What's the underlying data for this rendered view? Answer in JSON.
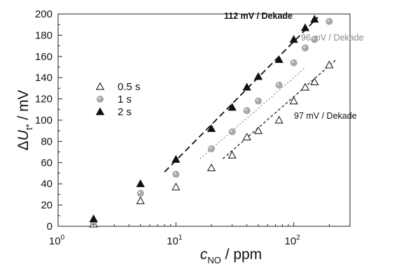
{
  "chart_data": {
    "type": "scatter",
    "x_scale": "log",
    "xlim": [
      1,
      300
    ],
    "ylim": [
      0,
      200
    ],
    "x_ticks": [
      {
        "value": 1,
        "base": "10",
        "exp": "0"
      },
      {
        "value": 10,
        "base": "10",
        "exp": "1"
      },
      {
        "value": 100,
        "base": "10",
        "exp": "2"
      }
    ],
    "y_ticks": [
      0,
      20,
      40,
      60,
      80,
      100,
      120,
      140,
      160,
      180,
      200
    ],
    "xlabel": {
      "symbol": "c",
      "subscript": "NO",
      "rest": " / ppm"
    },
    "ylabel": {
      "delta": "Δ",
      "symbol": "U",
      "subscript": "t*",
      "rest": " / mV"
    },
    "legend": {
      "position": "center-left"
    },
    "series": [
      {
        "name": "0.5 s",
        "marker": "triangle-open",
        "color": "#222222",
        "points": [
          [
            2,
            2
          ],
          [
            5,
            24
          ],
          [
            10,
            37
          ],
          [
            20,
            55
          ],
          [
            30,
            67
          ],
          [
            40,
            84
          ],
          [
            50,
            90
          ],
          [
            75,
            100
          ],
          [
            100,
            118
          ],
          [
            125,
            131
          ],
          [
            150,
            136
          ],
          [
            200,
            152
          ]
        ]
      },
      {
        "name": "1 s",
        "marker": "circle-shaded",
        "color": "#a9a9a9",
        "points": [
          [
            2,
            4
          ],
          [
            5,
            31
          ],
          [
            10,
            49
          ],
          [
            20,
            73
          ],
          [
            30,
            89
          ],
          [
            40,
            109
          ],
          [
            50,
            118
          ],
          [
            75,
            133
          ],
          [
            100,
            154
          ],
          [
            125,
            168
          ],
          [
            150,
            176
          ],
          [
            200,
            193
          ]
        ]
      },
      {
        "name": "2 s",
        "marker": "triangle-filled",
        "color": "#111111",
        "points": [
          [
            2,
            7
          ],
          [
            5,
            40
          ],
          [
            10,
            63
          ],
          [
            20,
            92
          ],
          [
            30,
            112
          ],
          [
            40,
            131
          ],
          [
            50,
            141
          ],
          [
            75,
            157
          ],
          [
            100,
            176
          ],
          [
            125,
            187
          ],
          [
            150,
            195
          ]
        ]
      }
    ],
    "fits": [
      {
        "slope": 112,
        "intercept": -50,
        "x_range": [
          8,
          160
        ],
        "color": "#111111",
        "dash": "9,5",
        "label": "112 mV / Dekade"
      },
      {
        "slope": 96,
        "intercept": -52,
        "x_range": [
          16,
          125
        ],
        "color": "#999999",
        "dash": "2,3",
        "label": "96 mV / Dekade"
      },
      {
        "slope": 97,
        "intercept": -72,
        "x_range": [
          25,
          230
        ],
        "color": "#333333",
        "dash": "4,3",
        "label": "97 mV / Dekade"
      }
    ]
  }
}
